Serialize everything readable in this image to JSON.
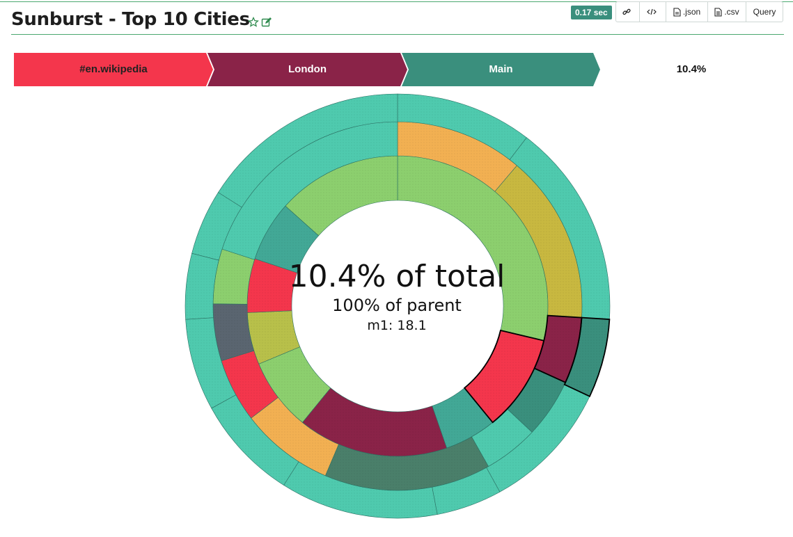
{
  "header": {
    "title": "Sunburst - Top 10 Cities",
    "icons": [
      "star-icon",
      "edit-icon"
    ],
    "timer": "0.17 sec",
    "buttons": [
      {
        "label": "",
        "icon": "link-icon"
      },
      {
        "label": "",
        "icon": "code-icon"
      },
      {
        "label": ".json",
        "icon": "file-icon"
      },
      {
        "label": ".csv",
        "icon": "file-icon"
      },
      {
        "label": "Query",
        "icon": ""
      }
    ]
  },
  "breadcrumb": {
    "items": [
      {
        "label": "#en.wikipedia",
        "color": "#f4364c",
        "text_color": "#222222"
      },
      {
        "label": "London",
        "color": "#8a2348",
        "text_color": "#ffffff"
      },
      {
        "label": "Main",
        "color": "#3a8f7d",
        "text_color": "#ffffff"
      }
    ],
    "percentage": "10.4%"
  },
  "center": {
    "total_text": "10.4% of total",
    "parent_text": "100% of parent",
    "metric_text": "m1: 18.1"
  },
  "chart_data": {
    "type": "sunburst",
    "metric": "m1",
    "highlighted_path": [
      "#en.wikipedia",
      "London",
      "Main"
    ],
    "rings": [
      {
        "level": 1,
        "segments": [
          {
            "color": "#8ccf6e",
            "share": 0.287
          },
          {
            "color": "#f4364c",
            "share": 0.104,
            "highlighted": true
          },
          {
            "color": "#42a896",
            "share": 0.056
          },
          {
            "color": "#8a2348",
            "share": 0.162
          },
          {
            "color": "#8ccf6e",
            "share": 0.078
          },
          {
            "color": "#b8c04a",
            "share": 0.056
          },
          {
            "color": "#f4364c",
            "share": 0.058
          },
          {
            "color": "#42a896",
            "share": 0.065
          },
          {
            "color": "#8ccf6e",
            "share": 0.134
          }
        ]
      },
      {
        "level": 2,
        "segments": [
          {
            "color": "#f2b052",
            "share": 0.112
          },
          {
            "color": "#c8b840",
            "share": 0.148
          },
          {
            "color": "#8a2348",
            "share": 0.058,
            "highlighted": true
          },
          {
            "color": "#3a8f7d",
            "share": 0.052
          },
          {
            "color": "#4fcaae",
            "share": 0.048
          },
          {
            "color": "#4a7f6a",
            "share": 0.146
          },
          {
            "color": "#f2b052",
            "share": 0.082
          },
          {
            "color": "#f4364c",
            "share": 0.056
          },
          {
            "color": "#5a6570",
            "share": 0.05
          },
          {
            "color": "#8ccf6e",
            "share": 0.048
          },
          {
            "color": "#4fcaae",
            "share": 0.2
          }
        ]
      },
      {
        "level": 3,
        "segments": [
          {
            "color": "#4fcaae",
            "share": 0.104
          },
          {
            "color": "#4fcaae",
            "share": 0.156
          },
          {
            "color": "#3a8f7d",
            "share": 0.06,
            "highlighted": true
          },
          {
            "color": "#4fcaae",
            "share": 0.1
          },
          {
            "color": "#4fcaae",
            "share": 0.05
          },
          {
            "color": "#4fcaae",
            "share": 0.12
          },
          {
            "color": "#4fcaae",
            "share": 0.08
          },
          {
            "color": "#4fcaae",
            "share": 0.07
          },
          {
            "color": "#4fcaae",
            "share": 0.05
          },
          {
            "color": "#4fcaae",
            "share": 0.05
          },
          {
            "color": "#4fcaae",
            "share": 0.16
          }
        ]
      }
    ]
  }
}
